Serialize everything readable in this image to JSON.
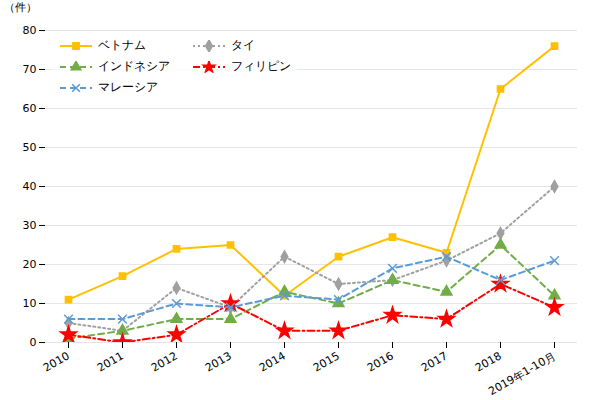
{
  "chart_data": {
    "type": "line",
    "categories": [
      "2010",
      "2011",
      "2012",
      "2013",
      "2014",
      "2015",
      "2016",
      "2017",
      "2018",
      "2019年1-10月"
    ],
    "series": [
      {
        "name": "ベトナム",
        "color": "#FFC000",
        "marker": "square",
        "line_style": "solid",
        "values": [
          11,
          17,
          24,
          25,
          12,
          22,
          27,
          23,
          65,
          76
        ]
      },
      {
        "name": "タイ",
        "color": "#A0A0A0",
        "marker": "diamond",
        "line_style": "dotted",
        "values": [
          5,
          3,
          14,
          9,
          22,
          15,
          16,
          21,
          28,
          40
        ]
      },
      {
        "name": "インドネシア",
        "color": "#70AD47",
        "marker": "triangle",
        "line_style": "dashed",
        "values": [
          1,
          3,
          6,
          6,
          13,
          10,
          16,
          13,
          25,
          12
        ]
      },
      {
        "name": "フィリピン",
        "color": "#FF0000",
        "marker": "star",
        "line_style": "dashdot",
        "values": [
          2,
          0,
          2,
          10,
          3,
          3,
          7,
          6,
          15,
          9
        ]
      },
      {
        "name": "マレーシア",
        "color": "#5B9BD5",
        "marker": "times",
        "line_style": "dashed",
        "values": [
          6,
          6,
          10,
          9,
          12,
          11,
          19,
          22,
          16,
          21
        ]
      }
    ],
    "ylabel": "（件）",
    "ylim": [
      0,
      80
    ],
    "yticks": [
      0,
      10,
      20,
      30,
      40,
      50,
      60,
      70,
      80
    ],
    "grid": true,
    "legend": "upper left"
  }
}
